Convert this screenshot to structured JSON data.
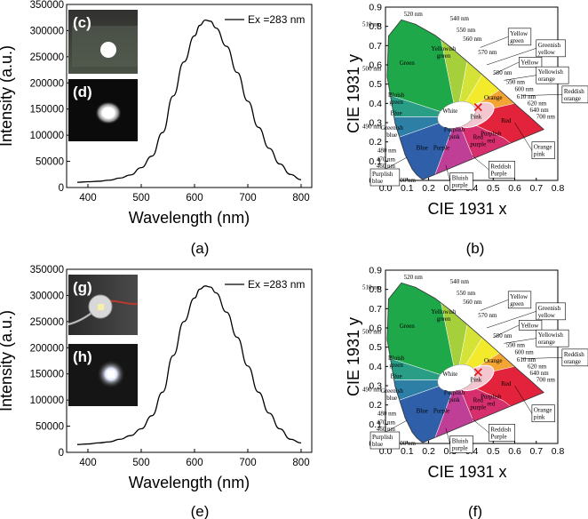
{
  "chart_data": [
    {
      "panel": "(a)",
      "type": "line",
      "xlabel": "Wavelength (nm)",
      "ylabel": "Intensity (a.u.)",
      "xlim": [
        360,
        820
      ],
      "ylim": [
        0,
        350000
      ],
      "xticks": [
        400,
        500,
        600,
        700,
        800
      ],
      "yticks": [
        0,
        50000,
        100000,
        150000,
        200000,
        250000,
        300000,
        350000
      ],
      "legend": "Ex =283 nm",
      "series": [
        {
          "name": "Ex =283 nm",
          "x": [
            380,
            400,
            420,
            440,
            460,
            480,
            500,
            520,
            540,
            560,
            580,
            600,
            610,
            620,
            630,
            640,
            660,
            680,
            700,
            720,
            740,
            760,
            780,
            800
          ],
          "y": [
            10000,
            11000,
            12000,
            14000,
            18000,
            24000,
            38000,
            60000,
            105000,
            175000,
            240000,
            290000,
            310000,
            320000,
            318000,
            305000,
            270000,
            220000,
            165000,
            115000,
            75000,
            45000,
            25000,
            15000
          ]
        }
      ],
      "insets": [
        "(c)",
        "(d)"
      ]
    },
    {
      "panel": "(b)",
      "type": "scatter",
      "xlabel": "CIE 1931 x",
      "ylabel": "CIE 1931 y",
      "xlim": [
        0.0,
        0.8
      ],
      "ylim": [
        0.0,
        0.9
      ],
      "xticks": [
        0.0,
        0.1,
        0.2,
        0.3,
        0.4,
        0.5,
        0.6,
        0.7,
        0.8
      ],
      "yticks": [
        0.0,
        0.1,
        0.2,
        0.3,
        0.4,
        0.5,
        0.6,
        0.7,
        0.8,
        0.9
      ],
      "point": {
        "x": 0.43,
        "y": 0.38,
        "marker": "x"
      }
    },
    {
      "panel": "(e)",
      "type": "line",
      "xlabel": "Wavelength (nm)",
      "ylabel": "Intensity (a.u.)",
      "xlim": [
        360,
        820
      ],
      "ylim": [
        0,
        350000
      ],
      "xticks": [
        400,
        500,
        600,
        700,
        800
      ],
      "yticks": [
        0,
        50000,
        100000,
        150000,
        200000,
        250000,
        300000,
        350000
      ],
      "legend": "Ex =283 nm",
      "series": [
        {
          "name": "Ex =283 nm",
          "x": [
            380,
            400,
            420,
            440,
            460,
            480,
            500,
            520,
            540,
            560,
            580,
            600,
            610,
            620,
            630,
            640,
            660,
            680,
            700,
            720,
            740,
            760,
            780,
            800
          ],
          "y": [
            15000,
            16000,
            18000,
            20000,
            25000,
            32000,
            45000,
            70000,
            115000,
            185000,
            250000,
            295000,
            312000,
            318000,
            316000,
            305000,
            268000,
            220000,
            165000,
            115000,
            75000,
            45000,
            25000,
            18000
          ]
        }
      ],
      "insets": [
        "(g)",
        "(h)"
      ]
    },
    {
      "panel": "(f)",
      "type": "scatter",
      "xlabel": "CIE 1931 x",
      "ylabel": "CIE 1931 y",
      "xlim": [
        0.0,
        0.8
      ],
      "ylim": [
        0.0,
        0.9
      ],
      "xticks": [
        0.0,
        0.1,
        0.2,
        0.3,
        0.4,
        0.5,
        0.6,
        0.7,
        0.8
      ],
      "yticks": [
        0.0,
        0.1,
        0.2,
        0.3,
        0.4,
        0.5,
        0.6,
        0.7,
        0.8,
        0.9
      ],
      "point": {
        "x": 0.43,
        "y": 0.37,
        "marker": "x"
      }
    }
  ],
  "cie": {
    "wavelength_labels": [
      "520 nm",
      "540 nm",
      "510 nm",
      "550 nm",
      "560 nm",
      "500 nm",
      "570 nm",
      "580 nm",
      "590 nm",
      "600 nm",
      "610 nm",
      "620 nm",
      "640 nm",
      "700 nm",
      "490 nm",
      "480 nm",
      "470 nm",
      "460 nm",
      "440 nm",
      "400 nm"
    ],
    "region_labels": [
      "Green",
      "Yellowish green",
      "Bluish green",
      "Blue",
      "Greenish blue",
      "White",
      "Pink",
      "Purplish pink",
      "Purple",
      "Red purple",
      "Purplish red",
      "Red",
      "Orange",
      "Blue"
    ],
    "boxed_labels": [
      "Yellow green",
      "Greenish yellow",
      "Yellow",
      "Yellowish orange",
      "Reddish orange",
      "Orange pink",
      "Reddish Purple",
      "Bluish purple",
      "Purplish blue"
    ],
    "colors": {
      "green": "#1ea84a",
      "yellowish_green": "#a6cf3c",
      "yellow_green": "#d5e339",
      "yellow": "#f3ea2c",
      "orange": "#f3a433",
      "red": "#e3233b",
      "purplish_red": "#d72f6e",
      "purple": "#c03f96",
      "blue": "#2f5fa8",
      "bluish_green": "#2a9d86",
      "greenish_blue": "#2e7fa6",
      "white": "#ffffff",
      "pink": "#f4c6d0"
    }
  }
}
